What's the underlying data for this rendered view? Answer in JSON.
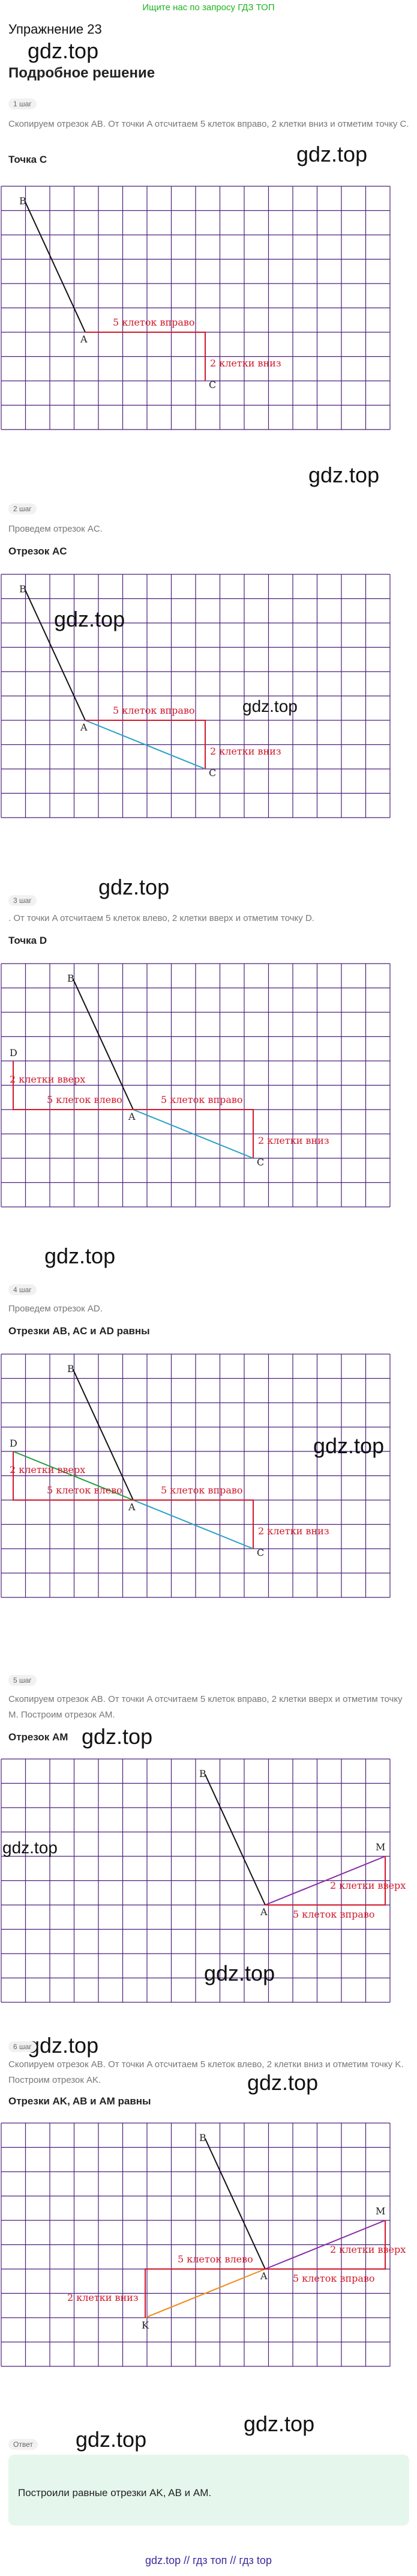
{
  "top_link": "Ищите нас по запросу ГДЗ ТОП",
  "page_title": "Упражнение 23",
  "watermark": "gdz.top",
  "subtitle": "Подробное решение",
  "steps": [
    {
      "badge": "1 шаг",
      "desc": "Скопируем отрезок AB. От точки A отсчитаем 5 клеток вправо, 2 клетки вниз и отметим точку C.",
      "heading": "Точка C",
      "labels": {
        "B": "B",
        "A": "A",
        "C": "C",
        "right": "5 клеток вправо",
        "down": "2 клетки вниз"
      }
    },
    {
      "badge": "2 шаг",
      "desc": "Проведем отрезок AC.",
      "heading": "Отрезок AC",
      "labels": {
        "B": "B",
        "A": "A",
        "C": "C",
        "right": "5 клеток вправо",
        "down": "2 клетки вниз"
      }
    },
    {
      "badge": "3 шаг",
      "desc": ". От точки A отсчитаем 5 клеток влево, 2 клетки вверх и отметим точку D.",
      "heading": "Точка D",
      "labels": {
        "B": "B",
        "A": "A",
        "C": "C",
        "D": "D",
        "up": "2 клетки вверх",
        "left": "5 клеток влево",
        "right": "5 клеток вправо",
        "down": "2 клетки вниз"
      }
    },
    {
      "badge": "4 шаг",
      "desc": "Проведем отрезок AD.",
      "heading": "Отрезки AB, AC и AD равны",
      "labels": {
        "B": "B",
        "A": "A",
        "C": "C",
        "D": "D",
        "up": "2 клетки вверх",
        "left": "5 клеток влево",
        "right": "5 клеток вправо",
        "down": "2 клетки вниз"
      }
    },
    {
      "badge": "5 шаг",
      "desc": "Скопируем отрезок AB. От точки A отсчитаем 5 клеток вправо, 2 клетки вверх и отметим точку M. Построим отрезок AM.",
      "heading": "Отрезок AM",
      "labels": {
        "B": "B",
        "A": "A",
        "M": "M",
        "up": "2 клетки вверх",
        "right": "5 клеток вправо"
      }
    },
    {
      "badge": "6 шаг",
      "desc": "Скопируем отрезок AB. От точки A отсчитаем 5 клеток влево, 2 клетки вниз и отметим точку K. Построим отрезок AK.",
      "heading": "Отрезки AK, AB и AM равны",
      "labels": {
        "B": "B",
        "A": "A",
        "M": "M",
        "K": "K",
        "up": "2 клетки вверх",
        "right": "5 клеток вправо",
        "left": "5 клеток влево",
        "down": "2 клетки вниз"
      }
    }
  ],
  "answer_badge": "Ответ",
  "answer_text": "Построили равные отрезки AK, AB и AM.",
  "footer": "gdz.top // гдз топ // гдз top",
  "colors": {
    "grid": "#4b1e7a",
    "segment": "#111111",
    "construction": "#d0182c",
    "ac": "#2aa0c8",
    "ad": "#1e9e3a",
    "am": "#8a2aa8",
    "ak": "#f08a1a",
    "answer_bg": "#e5f7ec"
  }
}
